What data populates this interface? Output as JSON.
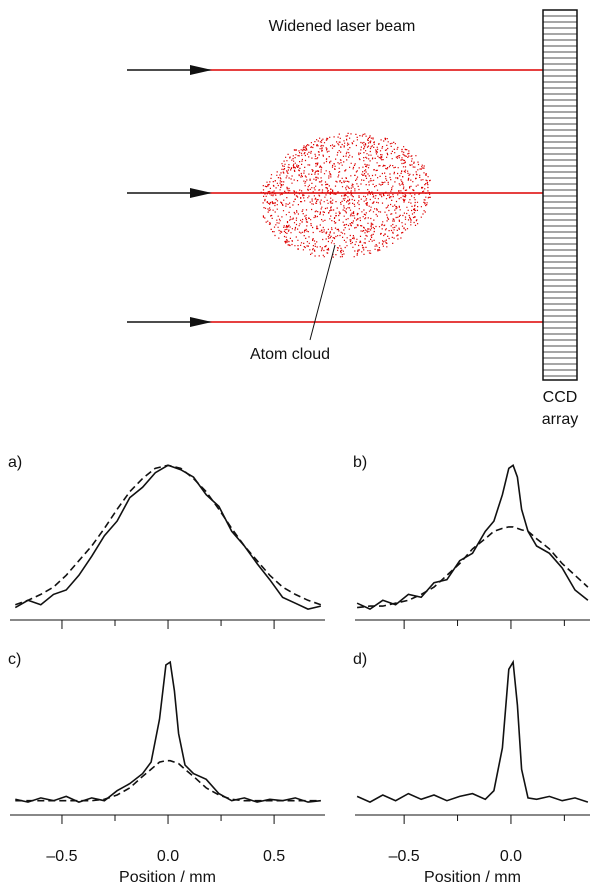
{
  "diagram": {
    "beam_label": "Widened laser beam",
    "cloud_label": "Atom cloud",
    "detector_label": [
      "CCD",
      "array"
    ]
  },
  "chart_data": [
    {
      "type": "line",
      "title": "a)",
      "xlim": [
        -0.745,
        0.74
      ],
      "ylim": [
        0,
        1.05
      ],
      "xticks": [
        -0.5,
        0,
        0.5
      ],
      "minor_xticks": [
        -0.25,
        0.25
      ],
      "x": [
        -0.72,
        -0.66,
        -0.6,
        -0.54,
        -0.48,
        -0.42,
        -0.36,
        -0.3,
        -0.24,
        -0.18,
        -0.12,
        -0.06,
        0,
        0.06,
        0.12,
        0.18,
        0.24,
        0.3,
        0.36,
        0.42,
        0.48,
        0.54,
        0.6,
        0.66,
        0.72
      ],
      "series": [
        {
          "style": "solid",
          "color": "#111111",
          "values": [
            0.03,
            0.08,
            0.05,
            0.12,
            0.15,
            0.25,
            0.38,
            0.52,
            0.62,
            0.78,
            0.85,
            0.95,
            1.0,
            0.97,
            0.92,
            0.8,
            0.72,
            0.55,
            0.45,
            0.33,
            0.22,
            0.1,
            0.06,
            0.02,
            0.04
          ]
        },
        {
          "style": "dashed",
          "color": "#111111",
          "values": [
            0.05,
            0.08,
            0.12,
            0.17,
            0.25,
            0.35,
            0.45,
            0.57,
            0.7,
            0.82,
            0.91,
            0.98,
            1.0,
            0.98,
            0.91,
            0.82,
            0.7,
            0.57,
            0.45,
            0.35,
            0.25,
            0.17,
            0.12,
            0.08,
            0.05
          ]
        }
      ]
    },
    {
      "type": "line",
      "title": "b)",
      "xlim": [
        -0.73,
        0.37
      ],
      "ylim": [
        0,
        1.05
      ],
      "xticks": [
        -0.5,
        0
      ],
      "minor_xticks": [
        -0.25,
        0.25
      ],
      "x": [
        -0.72,
        -0.66,
        -0.6,
        -0.54,
        -0.48,
        -0.42,
        -0.36,
        -0.3,
        -0.24,
        -0.18,
        -0.12,
        -0.08,
        -0.04,
        -0.01,
        0.01,
        0.03,
        0.05,
        0.08,
        0.12,
        0.18,
        0.24,
        0.3,
        0.36
      ],
      "series": [
        {
          "style": "solid",
          "color": "#111111",
          "values": [
            0.06,
            0.02,
            0.08,
            0.05,
            0.12,
            0.1,
            0.2,
            0.22,
            0.35,
            0.4,
            0.55,
            0.62,
            0.8,
            0.98,
            1.0,
            0.92,
            0.7,
            0.55,
            0.45,
            0.4,
            0.3,
            0.15,
            0.08
          ]
        },
        {
          "style": "dashed",
          "color": "#111111",
          "values": [
            0.03,
            0.04,
            0.04,
            0.06,
            0.08,
            0.12,
            0.17,
            0.25,
            0.33,
            0.43,
            0.5,
            0.55,
            0.57,
            0.58,
            0.58,
            0.57,
            0.56,
            0.55,
            0.5,
            0.43,
            0.33,
            0.25,
            0.17
          ]
        }
      ]
    },
    {
      "type": "line",
      "title": "c)",
      "xlabel": "Position / mm",
      "xlim": [
        -0.745,
        0.74
      ],
      "ylim": [
        0,
        1.05
      ],
      "xticks": [
        {
          "value": -0.5,
          "label": "–0.5"
        },
        {
          "value": 0,
          "label": "0.0"
        },
        0.5
      ],
      "minor_xticks": [
        -0.25,
        0.25
      ],
      "x": [
        -0.72,
        -0.66,
        -0.6,
        -0.54,
        -0.48,
        -0.42,
        -0.36,
        -0.3,
        -0.24,
        -0.18,
        -0.12,
        -0.08,
        -0.04,
        -0.01,
        0.01,
        0.03,
        0.05,
        0.08,
        0.12,
        0.18,
        0.24,
        0.3,
        0.36,
        0.42,
        0.48,
        0.54,
        0.6,
        0.66,
        0.72
      ],
      "series": [
        {
          "style": "solid",
          "color": "#111111",
          "values": [
            0.04,
            0.02,
            0.05,
            0.03,
            0.06,
            0.02,
            0.05,
            0.03,
            0.1,
            0.15,
            0.22,
            0.3,
            0.6,
            0.98,
            1.0,
            0.8,
            0.5,
            0.28,
            0.22,
            0.18,
            0.08,
            0.03,
            0.05,
            0.02,
            0.04,
            0.03,
            0.05,
            0.02,
            0.03
          ]
        },
        {
          "style": "dashed",
          "color": "#111111",
          "values": [
            0.03,
            0.03,
            0.03,
            0.03,
            0.03,
            0.03,
            0.03,
            0.04,
            0.07,
            0.12,
            0.2,
            0.25,
            0.3,
            0.31,
            0.31,
            0.3,
            0.29,
            0.25,
            0.2,
            0.12,
            0.07,
            0.04,
            0.03,
            0.03,
            0.03,
            0.03,
            0.03,
            0.03,
            0.03
          ]
        }
      ]
    },
    {
      "type": "line",
      "title": "d)",
      "xlabel": "Position / mm",
      "xlim": [
        -0.73,
        0.37
      ],
      "ylim": [
        0,
        1.05
      ],
      "xticks": [
        {
          "value": -0.5,
          "label": "–0.5"
        },
        {
          "value": 0,
          "label": "0.0"
        }
      ],
      "minor_xticks": [
        -0.25,
        0.25
      ],
      "x": [
        -0.72,
        -0.66,
        -0.6,
        -0.54,
        -0.48,
        -0.42,
        -0.36,
        -0.3,
        -0.24,
        -0.18,
        -0.12,
        -0.08,
        -0.04,
        -0.01,
        0.01,
        0.03,
        0.05,
        0.08,
        0.12,
        0.18,
        0.24,
        0.3,
        0.36
      ],
      "series": [
        {
          "style": "solid",
          "color": "#111111",
          "values": [
            0.06,
            0.02,
            0.07,
            0.03,
            0.08,
            0.04,
            0.07,
            0.03,
            0.06,
            0.08,
            0.04,
            0.1,
            0.4,
            0.95,
            1.0,
            0.7,
            0.25,
            0.05,
            0.04,
            0.06,
            0.03,
            0.05,
            0.02
          ]
        }
      ]
    }
  ]
}
